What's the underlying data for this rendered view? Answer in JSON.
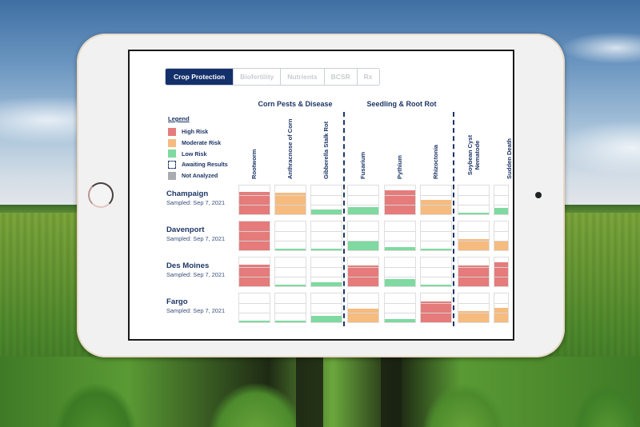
{
  "tabs": [
    {
      "label": "Crop Protection",
      "active": true
    },
    {
      "label": "Biofertility",
      "active": false
    },
    {
      "label": "Nutrients",
      "active": false
    },
    {
      "label": "BCSR",
      "active": false
    },
    {
      "label": "Rx",
      "active": false
    }
  ],
  "legend": {
    "title": "Legend",
    "items": [
      {
        "label": "High Risk",
        "color": "#e57b7b",
        "style": "solid"
      },
      {
        "label": "Moderate Risk",
        "color": "#f6bb7f",
        "style": "solid"
      },
      {
        "label": "Low Risk",
        "color": "#7fd9a0",
        "style": "solid"
      },
      {
        "label": "Awaiting Results",
        "color": "#1d3566",
        "style": "dashed"
      },
      {
        "label": "Not Analyzed",
        "color": "#a9abb0",
        "style": "solid"
      }
    ]
  },
  "colors": {
    "high": "#e57b7b",
    "moderate": "#f6bb7f",
    "low": "#7fd9a0",
    "brand": "#14306a"
  },
  "groups": [
    {
      "title": "Corn Pests & Disease",
      "columns": [
        "Rootworm",
        "Anthracnose of Corn",
        "Gibberella Stalk Rot"
      ]
    },
    {
      "title": "Seedling & Root Rot",
      "columns": [
        "Fusarium",
        "Pythium",
        "Rhizoctonia"
      ]
    },
    {
      "title": "",
      "columns": [
        "Soybean Cyst Nematode",
        "Sudden Death"
      ]
    }
  ],
  "columns": [
    "Rootworm",
    "Anthracnose of Corn",
    "Gibberella Stalk Rot",
    "Fusarium",
    "Pythium",
    "Rhizoctonia",
    "Soybean Cyst Nematode",
    "Sudden Death"
  ],
  "rows": [
    {
      "location": "Champaign",
      "sampled": "Sampled: Sep 7, 2021",
      "cells": [
        {
          "risk": "high",
          "level": 0.78
        },
        {
          "risk": "moderate",
          "level": 0.76
        },
        {
          "risk": "low",
          "level": 0.18
        },
        {
          "risk": "low",
          "level": 0.26
        },
        {
          "risk": "high",
          "level": 0.84
        },
        {
          "risk": "moderate",
          "level": 0.5
        },
        {
          "risk": "low",
          "level": 0.06
        },
        {
          "risk": "low",
          "level": 0.22
        }
      ]
    },
    {
      "location": "Davenport",
      "sampled": "Sampled: Sep 7, 2021",
      "cells": [
        {
          "risk": "high",
          "level": 1.0
        },
        {
          "risk": "low",
          "level": 0.06
        },
        {
          "risk": "low",
          "level": 0.06
        },
        {
          "risk": "low",
          "level": 0.32
        },
        {
          "risk": "low",
          "level": 0.1
        },
        {
          "risk": "low",
          "level": 0.06
        },
        {
          "risk": "moderate",
          "level": 0.4
        },
        {
          "risk": "moderate",
          "level": 0.34
        }
      ]
    },
    {
      "location": "Des Moines",
      "sampled": "Sampled: Sep 7, 2021",
      "cells": [
        {
          "risk": "high",
          "level": 0.74
        },
        {
          "risk": "low",
          "level": 0.06
        },
        {
          "risk": "low",
          "level": 0.15
        },
        {
          "risk": "high",
          "level": 0.72
        },
        {
          "risk": "low",
          "level": 0.24
        },
        {
          "risk": "low",
          "level": 0.06
        },
        {
          "risk": "high",
          "level": 0.72
        },
        {
          "risk": "high",
          "level": 0.84
        }
      ]
    },
    {
      "location": "Fargo",
      "sampled": "Sampled: Sep 7, 2021",
      "cells": [
        {
          "risk": "low",
          "level": 0.06
        },
        {
          "risk": "low",
          "level": 0.06
        },
        {
          "risk": "low",
          "level": 0.22
        },
        {
          "risk": "moderate",
          "level": 0.48
        },
        {
          "risk": "low",
          "level": 0.1
        },
        {
          "risk": "high",
          "level": 0.72
        },
        {
          "risk": "moderate",
          "level": 0.4
        },
        {
          "risk": "moderate",
          "level": 0.5
        }
      ]
    }
  ]
}
